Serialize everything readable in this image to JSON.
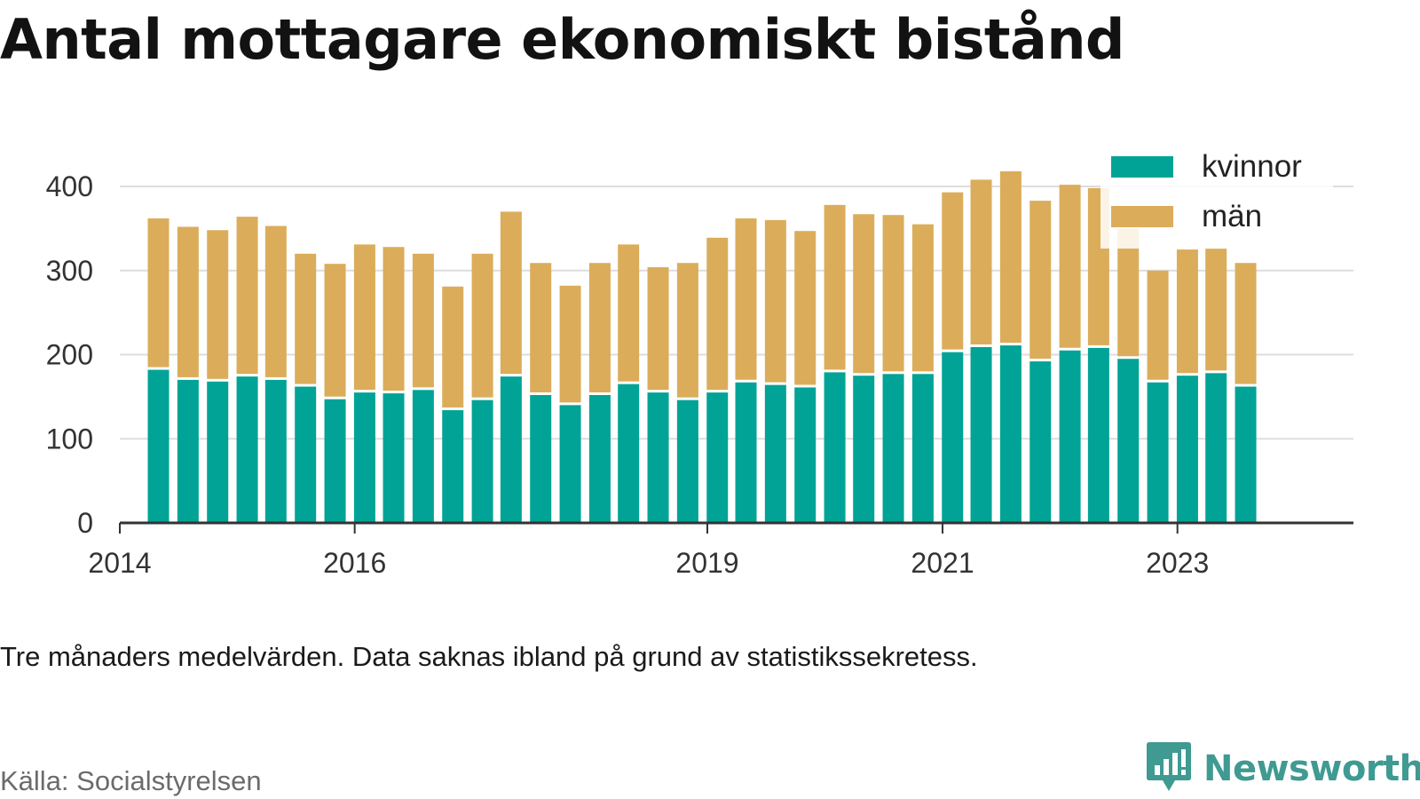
{
  "title": "Antal mottagare ekonomiskt bistånd",
  "caption": "Tre månaders medelvärden. Data saknas ibland på grund av statistikssekretess.",
  "source": "Källa: Socialstyrelsen",
  "brand": {
    "name": "Newsworthy",
    "icon": "bar-chart-speech-bubble-icon"
  },
  "colors": {
    "kvinnor": "#00a396",
    "man": "#dbad5a",
    "axis": "#333333",
    "grid": "#dddddd"
  },
  "chart_data": {
    "type": "bar",
    "stacked": true,
    "title": "Antal mottagare ekonomiskt bistånd",
    "xlabel": "",
    "ylabel": "",
    "ylim": [
      0,
      400
    ],
    "yticks": [
      0,
      100,
      200,
      300,
      400
    ],
    "xlim": [
      "2014-01-01",
      "2024-07-01"
    ],
    "xticks": [
      "2014",
      "2016",
      "2019",
      "2021",
      "2023"
    ],
    "grid": true,
    "legend": "top-right",
    "x": [
      "2014-05-01",
      "2014-08-01",
      "2014-11-01",
      "2015-02-01",
      "2015-05-01",
      "2015-08-01",
      "2015-11-01",
      "2016-02-01",
      "2016-05-01",
      "2016-08-01",
      "2016-11-01",
      "2017-02-01",
      "2017-05-01",
      "2017-08-01",
      "2017-11-01",
      "2018-02-01",
      "2018-05-01",
      "2018-08-01",
      "2018-11-01",
      "2019-02-01",
      "2019-05-01",
      "2019-08-01",
      "2019-11-01",
      "2020-02-01",
      "2020-05-01",
      "2020-08-01",
      "2020-11-01",
      "2021-02-01",
      "2021-05-01",
      "2021-08-01",
      "2021-11-01",
      "2022-02-01",
      "2022-05-01",
      "2022-08-01",
      "2022-11-01",
      "2023-02-01",
      "2023-05-01",
      "2023-08-01"
    ],
    "series": [
      {
        "name": "kvinnor",
        "color": "#00a396",
        "values": [
          182,
          170,
          168,
          174,
          170,
          162,
          147,
          155,
          154,
          158,
          134,
          146,
          174,
          152,
          140,
          152,
          165,
          155,
          146,
          155,
          167,
          164,
          161,
          179,
          175,
          177,
          177,
          203,
          209,
          211,
          192,
          205,
          208,
          195,
          167,
          175,
          178,
          162
        ]
      },
      {
        "name": "män",
        "color": "#dbad5a",
        "values": [
          180,
          182,
          180,
          190,
          183,
          158,
          161,
          176,
          174,
          162,
          147,
          174,
          196,
          157,
          142,
          157,
          166,
          149,
          163,
          184,
          195,
          196,
          186,
          199,
          192,
          189,
          178,
          190,
          199,
          207,
          191,
          197,
          190,
          155,
          133,
          150,
          148,
          147
        ]
      }
    ]
  }
}
